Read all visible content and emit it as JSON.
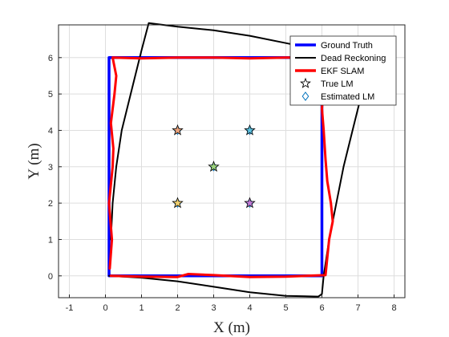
{
  "chart_data": {
    "type": "line",
    "title": "",
    "xlabel": "X (m)",
    "ylabel": "Y (m)",
    "xlim": [
      -1.3,
      8.3
    ],
    "ylim": [
      -0.6,
      6.9
    ],
    "xticks": [
      -1,
      0,
      1,
      2,
      3,
      4,
      5,
      6,
      7,
      8
    ],
    "yticks": [
      0,
      1,
      2,
      3,
      4,
      5,
      6
    ],
    "grid": true,
    "legend_position": "top-right",
    "series": [
      {
        "name": "Ground Truth",
        "color": "#0000ff",
        "points": [
          [
            0.1,
            0.0
          ],
          [
            6.0,
            0.0
          ],
          [
            6.0,
            6.0
          ],
          [
            0.1,
            6.0
          ],
          [
            0.1,
            0.0
          ]
        ]
      },
      {
        "name": "Dead Reckoning",
        "color": "#000000",
        "points": [
          [
            0.1,
            0.0
          ],
          [
            1.0,
            -0.05
          ],
          [
            2.0,
            -0.15
          ],
          [
            3.0,
            -0.3
          ],
          [
            4.0,
            -0.45
          ],
          [
            5.0,
            -0.55
          ],
          [
            5.9,
            -0.57
          ],
          [
            6.0,
            -0.5
          ],
          [
            6.05,
            0.0
          ],
          [
            6.2,
            1.0
          ],
          [
            6.4,
            2.0
          ],
          [
            6.6,
            3.0
          ],
          [
            6.85,
            4.0
          ],
          [
            7.1,
            5.0
          ],
          [
            7.3,
            5.7
          ],
          [
            6.9,
            6.0
          ],
          [
            6.0,
            6.2
          ],
          [
            5.0,
            6.4
          ],
          [
            4.0,
            6.6
          ],
          [
            3.0,
            6.75
          ],
          [
            2.0,
            6.85
          ],
          [
            1.2,
            6.95
          ],
          [
            1.0,
            6.2
          ],
          [
            0.7,
            5.0
          ],
          [
            0.45,
            4.0
          ],
          [
            0.3,
            3.0
          ],
          [
            0.2,
            2.0
          ],
          [
            0.15,
            1.0
          ]
        ]
      },
      {
        "name": "EKF SLAM",
        "color": "#ff0000",
        "points": [
          [
            0.15,
            0.0
          ],
          [
            1.0,
            -0.02
          ],
          [
            2.0,
            -0.03
          ],
          [
            2.3,
            0.05
          ],
          [
            3.0,
            0.02
          ],
          [
            4.0,
            -0.03
          ],
          [
            5.0,
            -0.02
          ],
          [
            6.1,
            0.02
          ],
          [
            6.15,
            0.5
          ],
          [
            6.2,
            1.0
          ],
          [
            6.3,
            1.5
          ],
          [
            6.25,
            2.0
          ],
          [
            6.15,
            2.6
          ],
          [
            6.1,
            3.2
          ],
          [
            6.05,
            4.0
          ],
          [
            6.0,
            4.6
          ],
          [
            6.05,
            5.2
          ],
          [
            6.1,
            6.0
          ],
          [
            5.0,
            6.0
          ],
          [
            4.0,
            5.98
          ],
          [
            3.0,
            6.0
          ],
          [
            2.0,
            6.0
          ],
          [
            1.0,
            5.98
          ],
          [
            0.2,
            6.0
          ],
          [
            0.3,
            5.5
          ],
          [
            0.25,
            5.0
          ],
          [
            0.15,
            4.2
          ],
          [
            0.22,
            3.5
          ],
          [
            0.2,
            3.0
          ],
          [
            0.1,
            2.0
          ],
          [
            0.18,
            1.0
          ],
          [
            0.12,
            0.2
          ]
        ]
      }
    ],
    "true_landmarks": [
      {
        "x": 2,
        "y": 4,
        "color": "#e8a27c"
      },
      {
        "x": 4,
        "y": 4,
        "color": "#5bc0de"
      },
      {
        "x": 3,
        "y": 3,
        "color": "#9ad17c"
      },
      {
        "x": 2,
        "y": 2,
        "color": "#f0d070"
      },
      {
        "x": 4,
        "y": 2,
        "color": "#c07cd8"
      }
    ],
    "estimated_landmarks": [
      {
        "x": 2.0,
        "y": 4.0
      },
      {
        "x": 4.0,
        "y": 4.0
      },
      {
        "x": 3.0,
        "y": 3.0
      },
      {
        "x": 2.0,
        "y": 2.0
      },
      {
        "x": 4.0,
        "y": 2.0
      }
    ],
    "legend": [
      {
        "label": "Ground Truth",
        "kind": "line",
        "color": "#0000ff"
      },
      {
        "label": "Dead Reckoning",
        "kind": "line",
        "color": "#000000"
      },
      {
        "label": "EKF SLAM",
        "kind": "line",
        "color": "#ff0000"
      },
      {
        "label": "True LM",
        "kind": "star",
        "color": "#000000"
      },
      {
        "label": "Estimated LM",
        "kind": "diamond",
        "color": "#0072bd"
      }
    ]
  }
}
